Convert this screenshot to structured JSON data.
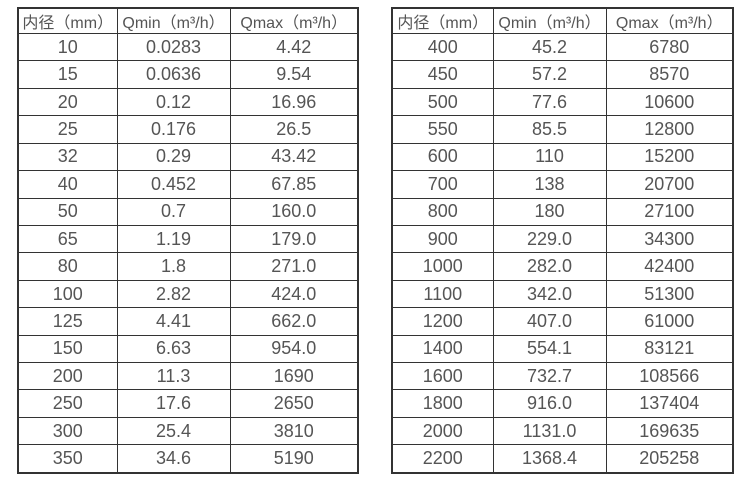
{
  "colors": {
    "background": "#ffffff",
    "border": "#333333",
    "text": "#555555"
  },
  "left_table": {
    "headers": [
      "内径（mm）",
      "Qmin（m³/h）",
      "Qmax（m³/h）"
    ],
    "rows": [
      [
        "10",
        "0.0283",
        "4.42"
      ],
      [
        "15",
        "0.0636",
        "9.54"
      ],
      [
        "20",
        "0.12",
        "16.96"
      ],
      [
        "25",
        "0.176",
        "26.5"
      ],
      [
        "32",
        "0.29",
        "43.42"
      ],
      [
        "40",
        "0.452",
        "67.85"
      ],
      [
        "50",
        "0.7",
        "160.0"
      ],
      [
        "65",
        "1.19",
        "179.0"
      ],
      [
        "80",
        "1.8",
        "271.0"
      ],
      [
        "100",
        "2.82",
        "424.0"
      ],
      [
        "125",
        "4.41",
        "662.0"
      ],
      [
        "150",
        "6.63",
        "954.0"
      ],
      [
        "200",
        "11.3",
        "1690"
      ],
      [
        "250",
        "17.6",
        "2650"
      ],
      [
        "300",
        "25.4",
        "3810"
      ],
      [
        "350",
        "34.6",
        "5190"
      ]
    ]
  },
  "right_table": {
    "headers": [
      "内径（mm）",
      "Qmin（m³/h）",
      "Qmax（m³/h）"
    ],
    "rows": [
      [
        "400",
        "45.2",
        "6780"
      ],
      [
        "450",
        "57.2",
        "8570"
      ],
      [
        "500",
        "77.6",
        "10600"
      ],
      [
        "550",
        "85.5",
        "12800"
      ],
      [
        "600",
        "110",
        "15200"
      ],
      [
        "700",
        "138",
        "20700"
      ],
      [
        "800",
        "180",
        "27100"
      ],
      [
        "900",
        "229.0",
        "34300"
      ],
      [
        "1000",
        "282.0",
        "42400"
      ],
      [
        "1100",
        "342.0",
        "51300"
      ],
      [
        "1200",
        "407.0",
        "61000"
      ],
      [
        "1400",
        "554.1",
        "83121"
      ],
      [
        "1600",
        "732.7",
        "108566"
      ],
      [
        "1800",
        "916.0",
        "137404"
      ],
      [
        "2000",
        "1131.0",
        "169635"
      ],
      [
        "2200",
        "1368.4",
        "205258"
      ]
    ]
  }
}
